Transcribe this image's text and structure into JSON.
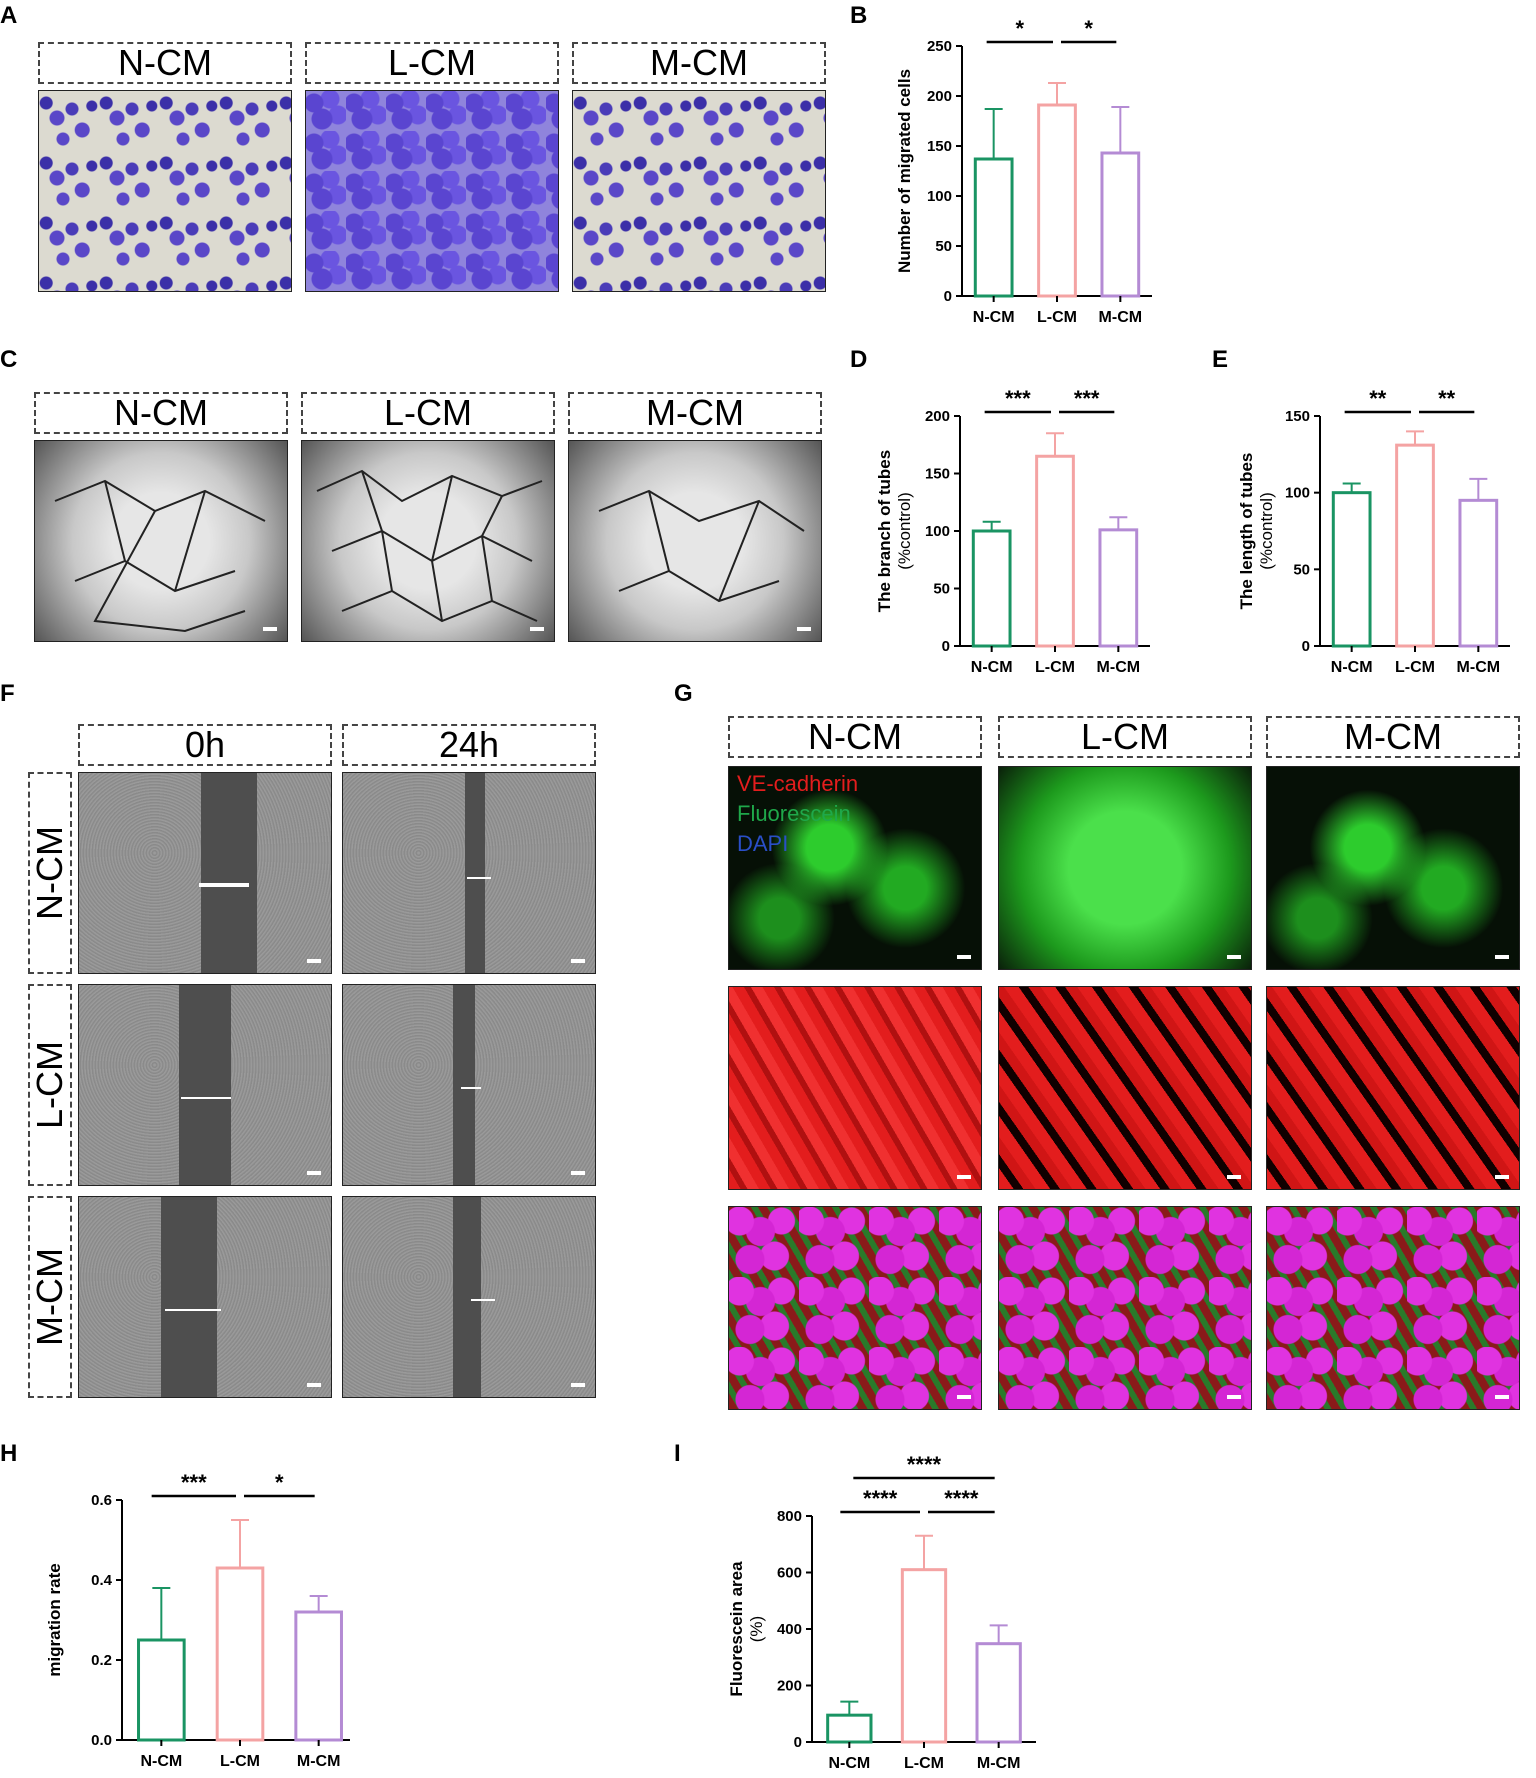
{
  "panel_labels": {
    "A": "A",
    "B": "B",
    "C": "C",
    "D": "D",
    "E": "E",
    "F": "F",
    "G": "G",
    "H": "H",
    "I": "I"
  },
  "groups": [
    "N-CM",
    "L-CM",
    "M-CM"
  ],
  "times": [
    "0h",
    "24h"
  ],
  "fluor_legend": [
    {
      "text": "VE-cadherin",
      "color": "#e31d1d"
    },
    {
      "text": "Fluorescein",
      "color": "#1fa84a"
    },
    {
      "text": "DAPI",
      "color": "#2a4fc7"
    }
  ],
  "colors": {
    "N-CM": "#1a9463",
    "L-CM": "#f4a3a3",
    "M-CM": "#b48bd4"
  },
  "chart_data": [
    {
      "id": "B",
      "type": "bar",
      "categories": [
        "N-CM",
        "L-CM",
        "M-CM"
      ],
      "values": [
        137,
        191,
        143
      ],
      "errors": [
        50,
        22,
        46
      ],
      "ylabel": "Number of migrated cells",
      "ylim": [
        0,
        250
      ],
      "yticks": [
        0,
        50,
        100,
        150,
        200,
        250
      ],
      "significance": [
        {
          "from": 0,
          "to": 1,
          "label": "*"
        },
        {
          "from": 1,
          "to": 2,
          "label": "*"
        }
      ]
    },
    {
      "id": "D",
      "type": "bar",
      "categories": [
        "N-CM",
        "L-CM",
        "M-CM"
      ],
      "values": [
        100,
        165,
        101
      ],
      "errors": [
        8,
        20,
        11
      ],
      "ylabel": [
        "The branch of tubes",
        "(%control)"
      ],
      "ylim": [
        0,
        200
      ],
      "yticks": [
        0,
        50,
        100,
        150,
        200
      ],
      "significance": [
        {
          "from": 0,
          "to": 1,
          "label": "***"
        },
        {
          "from": 1,
          "to": 2,
          "label": "***"
        }
      ]
    },
    {
      "id": "E",
      "type": "bar",
      "categories": [
        "N-CM",
        "L-CM",
        "M-CM"
      ],
      "values": [
        100,
        131,
        95
      ],
      "errors": [
        6,
        9,
        14
      ],
      "ylabel": [
        "The length of tubes",
        "(%control)"
      ],
      "ylim": [
        0,
        150
      ],
      "yticks": [
        0,
        50,
        100,
        150
      ],
      "significance": [
        {
          "from": 0,
          "to": 1,
          "label": "**"
        },
        {
          "from": 1,
          "to": 2,
          "label": "**"
        }
      ]
    },
    {
      "id": "H",
      "type": "bar",
      "categories": [
        "N-CM",
        "L-CM",
        "M-CM"
      ],
      "values": [
        0.25,
        0.43,
        0.32
      ],
      "errors": [
        0.13,
        0.12,
        0.04
      ],
      "ylabel": "migration rate",
      "ylim": [
        0,
        0.6
      ],
      "yticks": [
        0.0,
        0.2,
        0.4,
        0.6
      ],
      "ytick_labels": [
        "0.0",
        "0.2",
        "0.4",
        "0.6"
      ],
      "significance": [
        {
          "from": 0,
          "to": 1,
          "label": "***"
        },
        {
          "from": 1,
          "to": 2,
          "label": "*"
        }
      ]
    },
    {
      "id": "I",
      "type": "bar",
      "categories": [
        "N-CM",
        "L-CM",
        "M-CM"
      ],
      "values": [
        95,
        610,
        348
      ],
      "errors": [
        48,
        120,
        65
      ],
      "ylabel": [
        "Fluorescein area",
        "(%)"
      ],
      "ylim": [
        0,
        800
      ],
      "yticks": [
        0,
        200,
        400,
        600,
        800
      ],
      "significance": [
        {
          "from": 0,
          "to": 1,
          "label": "****"
        },
        {
          "from": 1,
          "to": 2,
          "label": "****"
        },
        {
          "from": 0,
          "to": 2,
          "label": "****",
          "level": 2
        }
      ]
    }
  ]
}
